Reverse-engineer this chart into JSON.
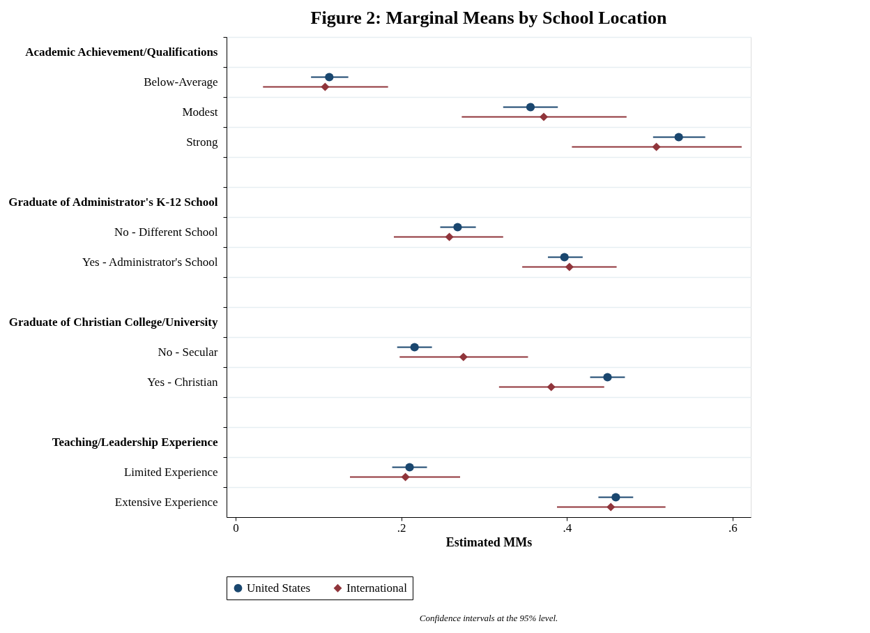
{
  "chart_data": {
    "type": "scatter",
    "orientation": "horizontal",
    "title": "Figure 2: Marginal Means by School Location",
    "xlabel": "Estimated MMs",
    "categories": [
      "Academic Achievement/Qualifications",
      "Below-Average",
      "Modest",
      "Strong",
      null,
      "Graduate of Administrator's K-12 School",
      "No - Different School",
      "Yes - Administrator's School",
      null,
      "Graduate of Christian College/University",
      "No - Secular",
      "Yes - Christian",
      null,
      "Teaching/Leadership Experience",
      "Limited Experience",
      "Extensive Experience"
    ],
    "series": [
      {
        "name": "United States",
        "color": "#1a476f",
        "marker": "circle",
        "values": [
          null,
          0.113,
          0.356,
          0.535,
          null,
          null,
          0.268,
          0.397,
          null,
          null,
          0.216,
          0.449,
          null,
          null,
          0.21,
          0.459
        ],
        "errors": [
          null,
          [
            0.091,
            0.136
          ],
          [
            0.323,
            0.389
          ],
          [
            0.504,
            0.567
          ],
          null,
          null,
          [
            0.247,
            0.29
          ],
          [
            0.377,
            0.419
          ],
          null,
          null,
          [
            0.195,
            0.237
          ],
          [
            0.428,
            0.47
          ],
          null,
          null,
          [
            0.189,
            0.231
          ],
          [
            0.438,
            0.48
          ]
        ]
      },
      {
        "name": "International",
        "color": "#90353b",
        "marker": "diamond",
        "values": [
          null,
          0.108,
          0.372,
          0.508,
          null,
          null,
          0.258,
          0.403,
          null,
          null,
          0.275,
          0.381,
          null,
          null,
          0.205,
          0.453
        ],
        "errors": [
          null,
          [
            0.033,
            0.184
          ],
          [
            0.273,
            0.472
          ],
          [
            0.406,
            0.611
          ],
          null,
          null,
          [
            0.191,
            0.323
          ],
          [
            0.346,
            0.46
          ],
          null,
          null,
          [
            0.198,
            0.353
          ],
          [
            0.318,
            0.445
          ],
          null,
          null,
          [
            0.138,
            0.271
          ],
          [
            0.388,
            0.519
          ]
        ]
      }
    ],
    "xlim": [
      -0.011,
      0.622
    ],
    "xticks": [
      0,
      {
        "value": 0.2,
        "label": ".2"
      },
      {
        "value": 0.4,
        "label": ".4"
      },
      {
        "value": 0.6,
        "label": ".6"
      }
    ],
    "grid": "y",
    "legend": "bottom",
    "annotations": [
      "Confidence intervals at the 95% level."
    ]
  }
}
